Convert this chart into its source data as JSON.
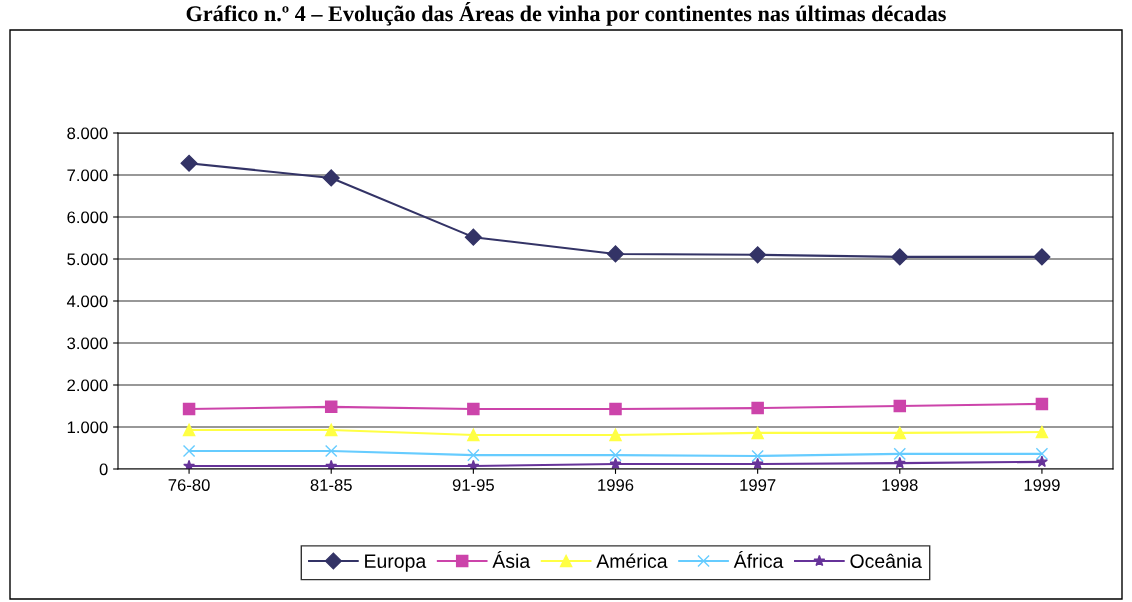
{
  "chart_data": {
    "type": "line",
    "title": "Gráfico n.º 4 – Evolução das Áreas de vinha por continentes nas últimas décadas",
    "categories": [
      "76-80",
      "81-85",
      "91-95",
      "1996",
      "1997",
      "1998",
      "1999"
    ],
    "series": [
      {
        "name": "Europa",
        "color": "#333366",
        "marker": "diamond",
        "values": [
          7280,
          6930,
          5520,
          5120,
          5100,
          5050,
          5050
        ]
      },
      {
        "name": "Ásia",
        "color": "#cc44aa",
        "marker": "square",
        "values": [
          1430,
          1480,
          1430,
          1430,
          1450,
          1500,
          1550
        ]
      },
      {
        "name": "América",
        "color": "#ffff44",
        "marker": "triangle",
        "values": [
          930,
          930,
          810,
          810,
          860,
          860,
          880
        ]
      },
      {
        "name": "África",
        "color": "#66ccff",
        "marker": "cross",
        "values": [
          430,
          430,
          330,
          330,
          310,
          360,
          360
        ]
      },
      {
        "name": "Oceânia",
        "color": "#663399",
        "marker": "star",
        "values": [
          70,
          70,
          70,
          120,
          120,
          140,
          170
        ]
      }
    ],
    "ylim": [
      0,
      8000
    ],
    "yticks": [
      {
        "value": 0,
        "label": "0"
      },
      {
        "value": 1000,
        "label": "1.000"
      },
      {
        "value": 2000,
        "label": "2.000"
      },
      {
        "value": 3000,
        "label": "3.000"
      },
      {
        "value": 4000,
        "label": "4.000"
      },
      {
        "value": 5000,
        "label": "5.000"
      },
      {
        "value": 6000,
        "label": "6.000"
      },
      {
        "value": 7000,
        "label": "7.000"
      },
      {
        "value": 8000,
        "label": "8.000"
      }
    ],
    "grid": "y",
    "legend": "bottom"
  }
}
